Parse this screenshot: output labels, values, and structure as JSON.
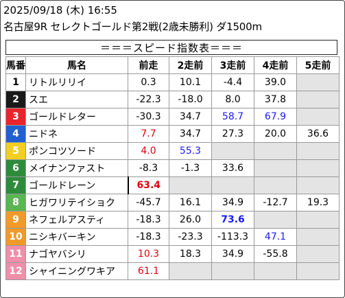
{
  "header": {
    "date_line": "2025/09/18 (木) 16:55",
    "race_line": "名古屋9R セレクトゴールド第2戦(2歳未勝利) ダ1500m",
    "caption": "＝＝＝スピード指数表＝＝＝"
  },
  "table": {
    "headers": [
      "馬番",
      "馬名",
      "前走",
      "2走前",
      "3走前",
      "4走前",
      "5走前"
    ],
    "rows": [
      {
        "no": "1",
        "bg": "#ffffff",
        "fg": "#000000",
        "name": "リトルリリイ",
        "cells": [
          {
            "v": "0.3",
            "s": ""
          },
          {
            "v": "10.1",
            "s": ""
          },
          {
            "v": "-4.4",
            "s": ""
          },
          {
            "v": "39.0",
            "s": ""
          },
          {
            "v": "",
            "s": "empty"
          }
        ]
      },
      {
        "no": "2",
        "bg": "#1a1a1a",
        "fg": "#ffffff",
        "name": "スエ",
        "cells": [
          {
            "v": "-22.3",
            "s": ""
          },
          {
            "v": "-18.0",
            "s": ""
          },
          {
            "v": "8.0",
            "s": ""
          },
          {
            "v": "37.8",
            "s": ""
          },
          {
            "v": "",
            "s": "empty"
          }
        ]
      },
      {
        "no": "3",
        "bg": "#e8252c",
        "fg": "#ffffff",
        "name": "ゴールドレター",
        "cells": [
          {
            "v": "-30.3",
            "s": ""
          },
          {
            "v": "34.7",
            "s": ""
          },
          {
            "v": "58.7",
            "s": "blue"
          },
          {
            "v": "67.9",
            "s": "blue"
          },
          {
            "v": "",
            "s": "empty"
          }
        ]
      },
      {
        "no": "4",
        "bg": "#2060d0",
        "fg": "#ffffff",
        "name": "ニドネ",
        "cells": [
          {
            "v": "7.7",
            "s": "red"
          },
          {
            "v": "34.7",
            "s": ""
          },
          {
            "v": "27.3",
            "s": ""
          },
          {
            "v": "20.0",
            "s": ""
          },
          {
            "v": "36.6",
            "s": ""
          }
        ]
      },
      {
        "no": "5",
        "bg": "#f2cf22",
        "fg": "#ffffff",
        "name": "ポンコツソード",
        "cells": [
          {
            "v": "4.0",
            "s": "red"
          },
          {
            "v": "55.3",
            "s": "blue"
          },
          {
            "v": "",
            "s": "empty"
          },
          {
            "v": "",
            "s": "empty"
          },
          {
            "v": "",
            "s": "empty"
          }
        ]
      },
      {
        "no": "6",
        "bg": "#2e8b3c",
        "fg": "#ffffff",
        "name": "メイナンファスト",
        "cells": [
          {
            "v": "-8.3",
            "s": ""
          },
          {
            "v": "-1.3",
            "s": ""
          },
          {
            "v": "33.6",
            "s": ""
          },
          {
            "v": "",
            "s": "empty"
          },
          {
            "v": "",
            "s": "empty"
          }
        ]
      },
      {
        "no": "7",
        "bg": "#2e8b3c",
        "fg": "#ffffff",
        "name": "ゴールドレーン",
        "cells": [
          {
            "v": "63.4",
            "s": "red bold mark"
          },
          {
            "v": "",
            "s": "empty"
          },
          {
            "v": "",
            "s": "empty"
          },
          {
            "v": "",
            "s": "empty"
          },
          {
            "v": "",
            "s": "empty"
          }
        ]
      },
      {
        "no": "8",
        "bg": "#5ab552",
        "fg": "#ffffff",
        "name": "ヒガワリテイショク",
        "cells": [
          {
            "v": "-45.7",
            "s": ""
          },
          {
            "v": "16.1",
            "s": ""
          },
          {
            "v": "34.9",
            "s": ""
          },
          {
            "v": "-12.7",
            "s": ""
          },
          {
            "v": "19.3",
            "s": ""
          }
        ]
      },
      {
        "no": "9",
        "bg": "#f09a2a",
        "fg": "#ffffff",
        "name": "ネフェルアスティ",
        "cells": [
          {
            "v": "-18.3",
            "s": ""
          },
          {
            "v": "26.0",
            "s": ""
          },
          {
            "v": "73.6",
            "s": "blue bold"
          },
          {
            "v": "",
            "s": "empty"
          },
          {
            "v": "",
            "s": "empty"
          }
        ]
      },
      {
        "no": "10",
        "bg": "#f09a2a",
        "fg": "#ffffff",
        "name": "ニシキバーキン",
        "cells": [
          {
            "v": "-18.3",
            "s": ""
          },
          {
            "v": "-23.3",
            "s": ""
          },
          {
            "v": "-113.3",
            "s": ""
          },
          {
            "v": "47.1",
            "s": "blue"
          },
          {
            "v": "",
            "s": "empty"
          }
        ]
      },
      {
        "no": "11",
        "bg": "#ef8fa9",
        "fg": "#ffffff",
        "name": "ナゴヤバシリ",
        "cells": [
          {
            "v": "10.3",
            "s": "red"
          },
          {
            "v": "18.3",
            "s": ""
          },
          {
            "v": "34.9",
            "s": ""
          },
          {
            "v": "-55.8",
            "s": ""
          },
          {
            "v": "",
            "s": "empty"
          }
        ]
      },
      {
        "no": "12",
        "bg": "#ef8fa9",
        "fg": "#ffffff",
        "name": "シャイニングワキア",
        "cells": [
          {
            "v": "61.1",
            "s": "red"
          },
          {
            "v": "",
            "s": "empty"
          },
          {
            "v": "",
            "s": "empty"
          },
          {
            "v": "",
            "s": "empty"
          },
          {
            "v": "",
            "s": "empty"
          }
        ]
      }
    ]
  }
}
